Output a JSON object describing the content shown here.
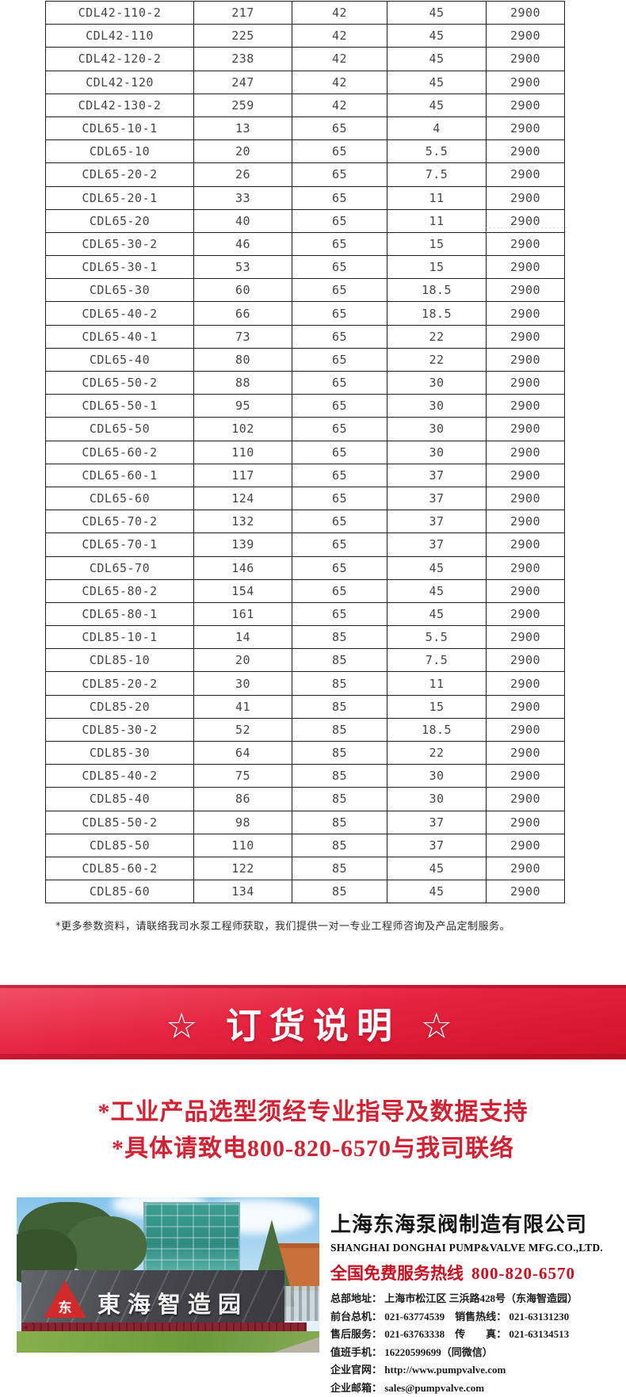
{
  "table": {
    "rows": [
      [
        "CDL42-110-2",
        "217",
        "42",
        "45",
        "2900"
      ],
      [
        "CDL42-110",
        "225",
        "42",
        "45",
        "2900"
      ],
      [
        "CDL42-120-2",
        "238",
        "42",
        "45",
        "2900"
      ],
      [
        "CDL42-120",
        "247",
        "42",
        "45",
        "2900"
      ],
      [
        "CDL42-130-2",
        "259",
        "42",
        "45",
        "2900"
      ],
      [
        "CDL65-10-1",
        "13",
        "65",
        "4",
        "2900"
      ],
      [
        "CDL65-10",
        "20",
        "65",
        "5.5",
        "2900"
      ],
      [
        "CDL65-20-2",
        "26",
        "65",
        "7.5",
        "2900"
      ],
      [
        "CDL65-20-1",
        "33",
        "65",
        "11",
        "2900"
      ],
      [
        "CDL65-20",
        "40",
        "65",
        "11",
        "2900"
      ],
      [
        "CDL65-30-2",
        "46",
        "65",
        "15",
        "2900"
      ],
      [
        "CDL65-30-1",
        "53",
        "65",
        "15",
        "2900"
      ],
      [
        "CDL65-30",
        "60",
        "65",
        "18.5",
        "2900"
      ],
      [
        "CDL65-40-2",
        "66",
        "65",
        "18.5",
        "2900"
      ],
      [
        "CDL65-40-1",
        "73",
        "65",
        "22",
        "2900"
      ],
      [
        "CDL65-40",
        "80",
        "65",
        "22",
        "2900"
      ],
      [
        "CDL65-50-2",
        "88",
        "65",
        "30",
        "2900"
      ],
      [
        "CDL65-50-1",
        "95",
        "65",
        "30",
        "2900"
      ],
      [
        "CDL65-50",
        "102",
        "65",
        "30",
        "2900"
      ],
      [
        "CDL65-60-2",
        "110",
        "65",
        "30",
        "2900"
      ],
      [
        "CDL65-60-1",
        "117",
        "65",
        "37",
        "2900"
      ],
      [
        "CDL65-60",
        "124",
        "65",
        "37",
        "2900"
      ],
      [
        "CDL65-70-2",
        "132",
        "65",
        "37",
        "2900"
      ],
      [
        "CDL65-70-1",
        "139",
        "65",
        "37",
        "2900"
      ],
      [
        "CDL65-70",
        "146",
        "65",
        "45",
        "2900"
      ],
      [
        "CDL65-80-2",
        "154",
        "65",
        "45",
        "2900"
      ],
      [
        "CDL65-80-1",
        "161",
        "65",
        "45",
        "2900"
      ],
      [
        "CDL85-10-1",
        "14",
        "85",
        "5.5",
        "2900"
      ],
      [
        "CDL85-10",
        "20",
        "85",
        "7.5",
        "2900"
      ],
      [
        "CDL85-20-2",
        "30",
        "85",
        "11",
        "2900"
      ],
      [
        "CDL85-20",
        "41",
        "85",
        "15",
        "2900"
      ],
      [
        "CDL85-30-2",
        "52",
        "85",
        "18.5",
        "2900"
      ],
      [
        "CDL85-30",
        "64",
        "85",
        "22",
        "2900"
      ],
      [
        "CDL85-40-2",
        "75",
        "85",
        "30",
        "2900"
      ],
      [
        "CDL85-40",
        "86",
        "85",
        "30",
        "2900"
      ],
      [
        "CDL85-50-2",
        "98",
        "85",
        "37",
        "2900"
      ],
      [
        "CDL85-50",
        "110",
        "85",
        "37",
        "2900"
      ],
      [
        "CDL85-60-2",
        "122",
        "85",
        "45",
        "2900"
      ],
      [
        "CDL85-60",
        "134",
        "85",
        "45",
        "2900"
      ]
    ]
  },
  "footnote": "*更多参数资料，请联络我司水泵工程师获取，我们提供一对一专业工程师咨询及产品定制服务。",
  "banner": {
    "title": "☆ 订货说明 ☆"
  },
  "notices": [
    "*工业产品选型须经专业指导及数据支持",
    "*具体请致电800-820-6570与我司联络"
  ],
  "company": {
    "park_sign": "東海智造园",
    "logo_glyph": "东",
    "name_cn": "上海东海泵阀制造有限公司",
    "name_en": "SHANGHAI DONGHAI PUMP&VALVE MFG.CO.,LTD.",
    "hotline_label": "全国免费服务热线",
    "hotline_number": "800-820-6570",
    "contacts": [
      "总部地址： 上海市松江区 三浜路428号（东海智造园）",
      "前台总机： 021-63774539　销售热线： 021-63131230",
      "售后服务： 021-63763338　传　　真： 021-63134513",
      "值班手机： 16220599699（同微信）",
      "企业官网： http://www.pumpvalve.com",
      "企业邮箱： sales@pumpvalve.com"
    ]
  },
  "colors": {
    "accent_red": "#d01228",
    "notice_red": "#d02233",
    "hotline_red": "#cc0e1f",
    "table_border": "#1f1f1f"
  }
}
